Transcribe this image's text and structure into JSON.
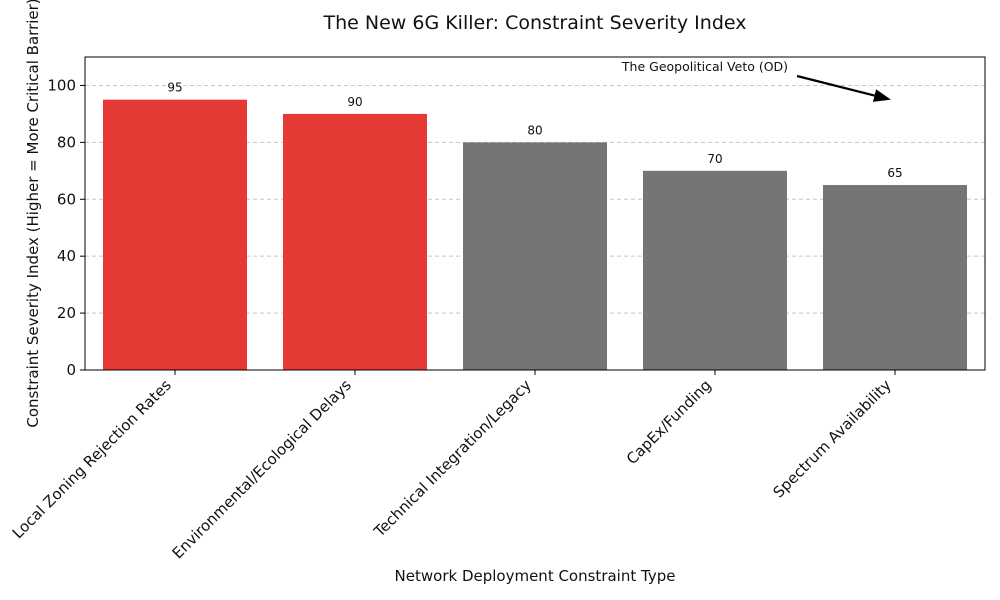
{
  "chart_data": {
    "type": "bar",
    "title": "The New 6G Killer: Constraint Severity Index",
    "xlabel": "Network Deployment Constraint Type",
    "ylabel": "Constraint Severity Index (Higher = More Critical Barrier)",
    "categories": [
      "Local Zoning Rejection Rates",
      "Environmental/Ecological Delays",
      "Technical Integration/Legacy",
      "CapEx/Funding",
      "Spectrum Availability"
    ],
    "values": [
      95,
      90,
      80,
      70,
      65
    ],
    "bar_colors": [
      "#e53935",
      "#e53935",
      "#757575",
      "#757575",
      "#757575"
    ],
    "ylim": [
      0,
      110
    ],
    "yticks": [
      0,
      20,
      40,
      60,
      80,
      100
    ],
    "grid": "y-dashed",
    "annotation": {
      "text": "The Geopolitical Veto (OD)",
      "arrow_target_category": "Spectrum Availability",
      "arrow_target_value": 95
    }
  }
}
